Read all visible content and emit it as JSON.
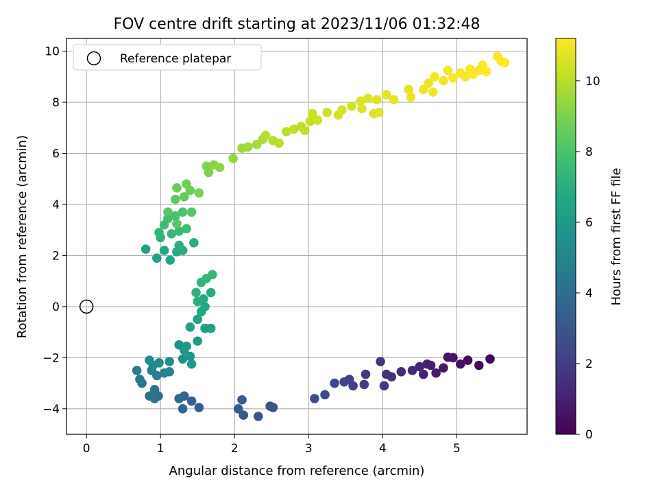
{
  "chart_data": {
    "type": "scatter",
    "title": "FOV centre drift starting at 2023/11/06 01:32:48",
    "xlabel": "Angular distance from reference (arcmin)",
    "ylabel": "Rotation from reference (arcmin)",
    "xlim": [
      -0.27,
      5.95
    ],
    "ylim": [
      -5.0,
      10.5
    ],
    "xticks": [
      0,
      1,
      2,
      3,
      4,
      5
    ],
    "yticks": [
      -4,
      -2,
      0,
      2,
      4,
      6,
      8,
      10
    ],
    "grid": true,
    "legend": {
      "position": "top-left",
      "label": "Reference platepar"
    },
    "reference_point": {
      "x": 0,
      "y": 0
    },
    "colorbar": {
      "label": "Hours from first FF file",
      "range": [
        0,
        11.2
      ],
      "ticks": [
        0,
        2,
        4,
        6,
        8,
        10
      ],
      "colormap": "viridis"
    },
    "points": [
      [
        5.45,
        -2.05,
        0.1
      ],
      [
        5.3,
        -2.3,
        0.2
      ],
      [
        5.15,
        -2.1,
        0.3
      ],
      [
        5.05,
        -2.25,
        0.4
      ],
      [
        4.95,
        -2.0,
        0.5
      ],
      [
        4.88,
        -1.98,
        0.6
      ],
      [
        4.82,
        -2.4,
        0.7
      ],
      [
        4.72,
        -2.6,
        0.8
      ],
      [
        4.65,
        -2.3,
        0.9
      ],
      [
        4.6,
        -2.25,
        1.0
      ],
      [
        4.55,
        -2.65,
        1.1
      ],
      [
        4.5,
        -2.35,
        1.2
      ],
      [
        4.4,
        -2.5,
        1.3
      ],
      [
        4.25,
        -2.55,
        1.4
      ],
      [
        4.12,
        -2.75,
        1.5
      ],
      [
        4.05,
        -2.65,
        1.6
      ],
      [
        3.97,
        -2.15,
        1.7
      ],
      [
        4.02,
        -3.1,
        1.8
      ],
      [
        3.77,
        -2.65,
        1.9
      ],
      [
        3.75,
        -3.05,
        2.0
      ],
      [
        3.6,
        -3.1,
        2.1
      ],
      [
        3.55,
        -2.85,
        2.2
      ],
      [
        3.48,
        -2.95,
        2.3
      ],
      [
        3.35,
        -3.0,
        2.4
      ],
      [
        3.22,
        -3.45,
        2.5
      ],
      [
        3.08,
        -3.6,
        2.6
      ],
      [
        2.52,
        -3.95,
        2.8
      ],
      [
        2.48,
        -3.9,
        2.9
      ],
      [
        2.32,
        -4.3,
        3.0
      ],
      [
        2.12,
        -4.25,
        3.1
      ],
      [
        2.05,
        -4.0,
        3.2
      ],
      [
        2.1,
        -3.65,
        3.3
      ],
      [
        1.52,
        -3.95,
        3.4
      ],
      [
        1.42,
        -3.7,
        3.5
      ],
      [
        1.3,
        -4.0,
        3.6
      ],
      [
        1.32,
        -3.5,
        3.7
      ],
      [
        1.25,
        -3.6,
        3.8
      ],
      [
        0.97,
        -3.5,
        3.9
      ],
      [
        0.9,
        -3.45,
        4.0
      ],
      [
        0.92,
        -3.6,
        4.1
      ],
      [
        0.85,
        -3.5,
        4.2
      ],
      [
        0.92,
        -3.25,
        4.3
      ],
      [
        0.75,
        -3.0,
        4.4
      ],
      [
        0.72,
        -2.85,
        4.5
      ],
      [
        0.68,
        -2.5,
        4.6
      ],
      [
        0.88,
        -2.5,
        4.7
      ],
      [
        0.95,
        -2.7,
        4.8
      ],
      [
        1.05,
        -2.6,
        4.9
      ],
      [
        1.12,
        -2.55,
        5.0
      ],
      [
        0.9,
        -2.3,
        5.1
      ],
      [
        0.98,
        -2.2,
        5.2
      ],
      [
        0.85,
        -2.1,
        5.3
      ],
      [
        1.12,
        -2.15,
        5.4
      ],
      [
        1.3,
        -2.05,
        5.5
      ],
      [
        1.25,
        -1.5,
        5.6
      ],
      [
        1.32,
        -1.7,
        5.7
      ],
      [
        1.4,
        -1.95,
        5.8
      ],
      [
        1.42,
        -2.25,
        5.9
      ],
      [
        1.35,
        -1.55,
        6.0
      ],
      [
        1.5,
        -1.35,
        6.1
      ],
      [
        1.4,
        -0.8,
        6.2
      ],
      [
        1.6,
        -0.85,
        6.3
      ],
      [
        1.68,
        -0.85,
        6.4
      ],
      [
        1.5,
        -0.5,
        6.5
      ],
      [
        1.55,
        -0.2,
        6.6
      ],
      [
        1.6,
        0.0,
        6.7
      ],
      [
        1.58,
        0.3,
        6.8
      ],
      [
        1.68,
        0.55,
        6.9
      ],
      [
        1.5,
        0.2,
        7.0
      ],
      [
        1.48,
        0.55,
        7.1
      ],
      [
        1.55,
        0.95,
        7.2
      ],
      [
        1.62,
        1.1,
        7.3
      ],
      [
        1.7,
        1.25,
        7.4
      ],
      [
        0.8,
        2.25,
        6.4
      ],
      [
        0.95,
        1.9,
        6.5
      ],
      [
        1.05,
        2.2,
        6.6
      ],
      [
        1.13,
        1.82,
        6.7
      ],
      [
        1.22,
        2.15,
        6.8
      ],
      [
        1.3,
        2.2,
        6.9
      ],
      [
        1.45,
        2.5,
        7.0
      ],
      [
        1.25,
        2.4,
        7.1
      ],
      [
        1.0,
        2.7,
        7.2
      ],
      [
        0.98,
        2.9,
        7.3
      ],
      [
        1.15,
        2.85,
        7.4
      ],
      [
        1.25,
        2.95,
        7.5
      ],
      [
        1.35,
        3.05,
        7.6
      ],
      [
        1.05,
        3.2,
        7.7
      ],
      [
        1.1,
        3.45,
        7.8
      ],
      [
        1.2,
        3.55,
        7.9
      ],
      [
        1.3,
        3.7,
        8.0
      ],
      [
        1.42,
        3.7,
        8.1
      ],
      [
        1.1,
        3.7,
        8.2
      ],
      [
        1.22,
        3.25,
        8.3
      ],
      [
        1.2,
        4.2,
        8.4
      ],
      [
        1.32,
        4.3,
        8.5
      ],
      [
        1.4,
        4.55,
        8.6
      ],
      [
        1.22,
        4.65,
        8.7
      ],
      [
        1.35,
        4.8,
        8.8
      ],
      [
        1.52,
        4.45,
        8.9
      ],
      [
        1.65,
        5.25,
        9.0
      ],
      [
        1.62,
        5.5,
        9.1
      ],
      [
        1.72,
        5.55,
        9.2
      ],
      [
        1.8,
        5.45,
        9.3
      ],
      [
        1.98,
        5.8,
        9.4
      ],
      [
        2.1,
        6.2,
        9.5
      ],
      [
        2.18,
        6.25,
        9.6
      ],
      [
        2.3,
        6.35,
        9.7
      ],
      [
        2.38,
        6.55,
        9.8
      ],
      [
        2.42,
        6.7,
        9.9
      ],
      [
        2.52,
        6.5,
        9.9
      ],
      [
        2.6,
        6.4,
        10.0
      ],
      [
        2.7,
        6.85,
        10.0
      ],
      [
        2.8,
        6.95,
        10.1
      ],
      [
        2.9,
        7.05,
        10.1
      ],
      [
        2.95,
        6.9,
        10.2
      ],
      [
        3.02,
        7.25,
        10.2
      ],
      [
        3.05,
        7.55,
        10.3
      ],
      [
        3.12,
        7.3,
        10.3
      ],
      [
        3.25,
        7.6,
        10.4
      ],
      [
        3.4,
        7.5,
        10.4
      ],
      [
        3.45,
        7.7,
        10.5
      ],
      [
        3.58,
        7.85,
        10.5
      ],
      [
        3.7,
        8.05,
        10.6
      ],
      [
        3.72,
        7.75,
        10.6
      ],
      [
        3.8,
        8.15,
        10.6
      ],
      [
        3.88,
        7.55,
        10.7
      ],
      [
        3.95,
        7.6,
        10.7
      ],
      [
        3.92,
        8.1,
        10.7
      ],
      [
        4.05,
        8.3,
        10.8
      ],
      [
        4.15,
        8.1,
        10.8
      ],
      [
        4.35,
        8.5,
        10.8
      ],
      [
        4.38,
        8.2,
        10.9
      ],
      [
        4.55,
        8.5,
        10.9
      ],
      [
        4.62,
        8.75,
        10.9
      ],
      [
        4.68,
        8.4,
        11.0
      ],
      [
        4.7,
        9.0,
        11.0
      ],
      [
        4.82,
        8.85,
        11.0
      ],
      [
        4.88,
        9.25,
        11.0
      ],
      [
        4.95,
        8.95,
        11.1
      ],
      [
        5.05,
        9.15,
        11.1
      ],
      [
        5.12,
        9.0,
        11.1
      ],
      [
        5.18,
        9.3,
        11.1
      ],
      [
        5.22,
        9.1,
        11.15
      ],
      [
        5.3,
        9.25,
        11.15
      ],
      [
        5.35,
        9.45,
        11.15
      ],
      [
        5.4,
        9.2,
        11.2
      ],
      [
        5.55,
        9.8,
        11.2
      ],
      [
        5.6,
        9.6,
        11.2
      ],
      [
        5.65,
        9.55,
        11.2
      ]
    ]
  }
}
